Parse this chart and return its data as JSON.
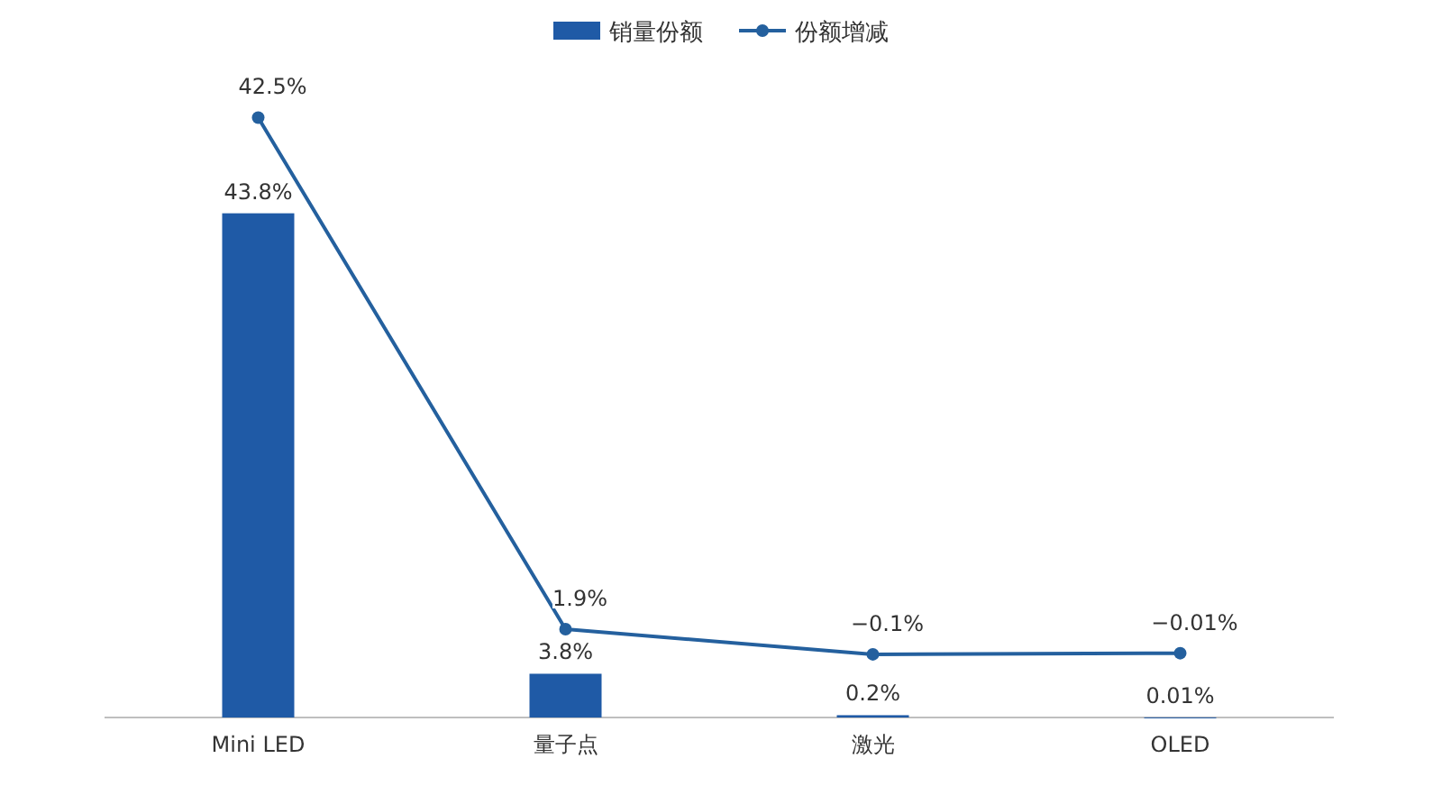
{
  "chart_data": {
    "type": "bar",
    "categories": [
      "Mini LED",
      "量子点",
      "激光",
      "OLED"
    ],
    "series": [
      {
        "name": "销量份额",
        "color": "#1f5aa6",
        "values": [
          43.8,
          3.8,
          0.2,
          0.01
        ],
        "value_labels": [
          "43.8%",
          "3.8%",
          "0.2%",
          "0.01%"
        ]
      },
      {
        "name": "份额增减",
        "type": "line",
        "axis": "y2",
        "marker": "circle",
        "color": "#24609e",
        "values": [
          42.5,
          1.9,
          -0.1,
          -0.01
        ],
        "value_labels": [
          "42.5%",
          "1.9%",
          "−0.1%",
          "−0.01%"
        ]
      }
    ],
    "legend": "top"
  }
}
